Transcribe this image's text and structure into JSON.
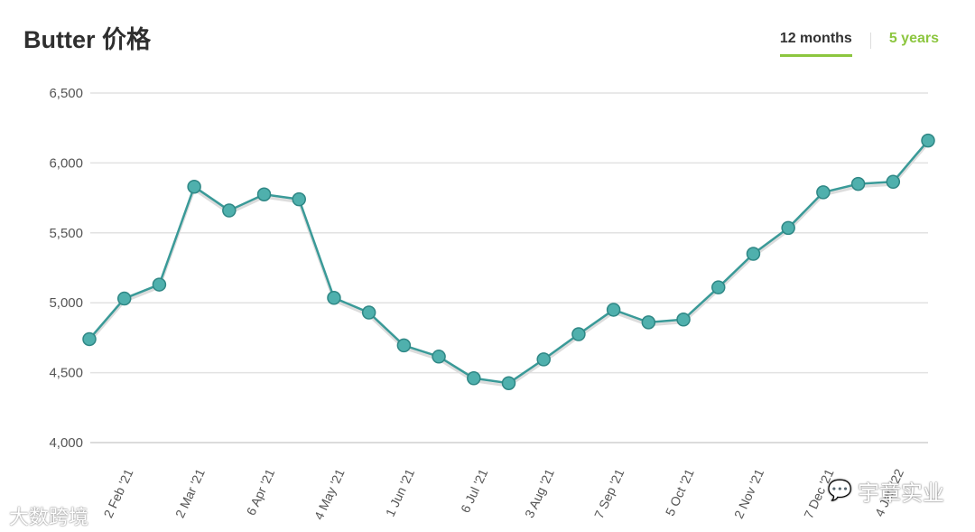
{
  "title": "Butter 价格",
  "tabs": [
    {
      "label": "12 months",
      "active": true
    },
    {
      "label": "5 years",
      "active": false
    }
  ],
  "colors": {
    "line": "#3a9a98",
    "marker": "#4fb0ad",
    "accent": "#8cc63f",
    "grid": "#e2e2e2"
  },
  "watermarks": {
    "left": "大数跨境",
    "right": "宇章实业"
  },
  "chart_data": {
    "type": "line",
    "ylim": [
      4000,
      6500
    ],
    "yticks": [
      4000,
      4500,
      5000,
      5500,
      6000,
      6500
    ],
    "ytick_labels": [
      "4,000",
      "4,500",
      "5,000",
      "5,500",
      "6,000",
      "6,500"
    ],
    "xtick_labels": [
      "2 Feb '21",
      "2 Mar '21",
      "6 Apr '21",
      "4 May '21",
      "1 Jun '21",
      "6 Jul '21",
      "3 Aug '21",
      "7 Sep '21",
      "5 Oct '21",
      "2 Nov '21",
      "7 Dec '21",
      "4 Jan '22"
    ],
    "values": [
      4740,
      5030,
      5130,
      5830,
      5660,
      5775,
      5740,
      5035,
      4930,
      4695,
      4615,
      4460,
      4425,
      4595,
      4775,
      4950,
      4860,
      4880,
      5110,
      5350,
      5535,
      5790,
      5850,
      5865,
      6160
    ],
    "grid": true
  }
}
